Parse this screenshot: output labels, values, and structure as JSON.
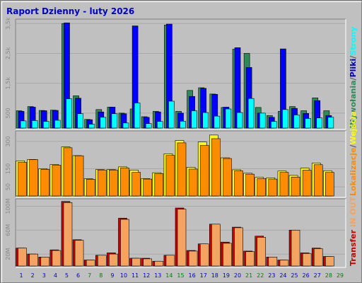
{
  "title": "Raport Dzienny -  luty 2026",
  "colors": {
    "wizyty": "#2e8b57",
    "strony": "#0000ff",
    "pliki": "#0000c0",
    "wywolania": "#00ffff",
    "lokalizacje": "#ff8c00",
    "wejscia": "#ffff00",
    "transfer_in": "#cc0000",
    "transfer_out": "#f4a460",
    "weekend_label": "#008000",
    "weekday_label": "#0000c0"
  },
  "chart_data": {
    "type": "bar",
    "categories": [
      "1",
      "2",
      "3",
      "4",
      "5",
      "6",
      "7",
      "8",
      "9",
      "10",
      "11",
      "12",
      "13",
      "14",
      "15",
      "16",
      "17",
      "18",
      "19",
      "20",
      "21",
      "22",
      "23",
      "24",
      "25",
      "26",
      "27",
      "28",
      "29"
    ],
    "weekend_days": [
      "7",
      "8",
      "14",
      "15",
      "21",
      "22",
      "28",
      "29"
    ],
    "panels": [
      {
        "id": "hits",
        "yticks": [
          "500",
          "1,5k",
          "2,5k",
          "3,5k"
        ],
        "ytick_values": [
          500,
          1500,
          2500,
          3500
        ],
        "ylim": [
          0,
          3600
        ],
        "legend": [
          {
            "text": "Wywołania",
            "color_key": "wizyty"
          },
          {
            "text": "Pliki",
            "color_key": "pliki"
          },
          {
            "text": "Strony",
            "color_key": "wywolania"
          }
        ],
        "series": [
          {
            "color_key": "wizyty",
            "values": [
              580,
              720,
              590,
              600,
              3500,
              1080,
              290,
              620,
              700,
              500,
              640,
              380,
              560,
              3450,
              560,
              1260,
              1350,
              1140,
              690,
              2640,
              2500,
              690,
              420,
              560,
              720,
              580,
              1010,
              580,
              0
            ]
          },
          {
            "color_key": "strony",
            "values": [
              560,
              700,
              580,
              590,
              3520,
              1000,
              280,
              540,
              700,
              480,
              3420,
              360,
              540,
              3480,
              500,
              1060,
              1330,
              1130,
              700,
              2690,
              2030,
              500,
              360,
              2650,
              660,
              490,
              920,
              420,
              0
            ]
          },
          {
            "color_key": "wywolania",
            "values": [
              240,
              250,
              220,
              260,
              980,
              480,
              130,
              360,
              480,
              170,
              840,
              150,
              220,
              900,
              230,
              580,
              520,
              400,
              640,
              520,
              990,
              500,
              220,
              620,
              440,
              320,
              340,
              360,
              0
            ]
          }
        ]
      },
      {
        "id": "visits",
        "yticks": [
          "50",
          "150",
          "300"
        ],
        "ytick_values": [
          50,
          150,
          300
        ],
        "ylim": [
          0,
          350
        ],
        "legend": [
          {
            "text": "Lokalizacje",
            "color_key": "lokalizacje"
          },
          {
            "text": "Wejścia",
            "color_key": "wejscia"
          }
        ],
        "series": [
          {
            "color_key": "wejscia",
            "values": [
              193,
              201,
              150,
              173,
              270,
              222,
              95,
              145,
              145,
              160,
              142,
              96,
              128,
              232,
              305,
              158,
              297,
              335,
              210,
              144,
              125,
              103,
              100,
              137,
              113,
              153,
              181,
              139,
              0
            ]
          },
          {
            "color_key": "lokalizacje",
            "values": [
              185,
              200,
              146,
              169,
              265,
              221,
              92,
              143,
              143,
              154,
              130,
              93,
              123,
              223,
              292,
              148,
              278,
              315,
              206,
              138,
              120,
              96,
              93,
              130,
              104,
              142,
              172,
              130,
              0
            ]
          }
        ]
      },
      {
        "id": "transfer",
        "yticks": [
          "20M",
          "60M",
          "100M"
        ],
        "ytick_values": [
          20,
          60,
          100
        ],
        "ylim": [
          0,
          110
        ],
        "legend": [
          {
            "text": "Transfer",
            "color_key": "transfer_in"
          },
          {
            "text": "IN",
            "color_key": "transfer_out"
          },
          {
            "text": "OUT",
            "color_key": "transfer_out"
          }
        ],
        "series": [
          {
            "color_key": "transfer_in",
            "values": [
              30,
              20,
              15,
              27,
              108,
              44,
              10,
              18,
              22,
              80,
              13,
              13,
              8,
              18,
              97,
              26,
              37,
              70,
              40,
              65,
              25,
              50,
              15,
              10,
              60,
              22,
              30,
              16,
              0
            ]
          },
          {
            "color_key": "transfer_out",
            "values": [
              30,
              20,
              15,
              26,
              106,
              43,
              10,
              18,
              20,
              78,
              13,
              12,
              8,
              18,
              95,
              25,
              37,
              70,
              38,
              64,
              24,
              48,
              15,
              10,
              60,
              21,
              29,
              16,
              0
            ]
          }
        ]
      }
    ]
  }
}
